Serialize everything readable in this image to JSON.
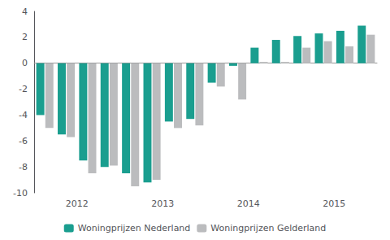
{
  "chart_data": {
    "type": "bar",
    "categories": [
      null,
      "2012",
      null,
      null,
      null,
      "2013",
      null,
      null,
      null,
      "2014",
      null,
      null,
      null,
      "2015",
      null,
      null
    ],
    "series": [
      {
        "name": "Woningprijzen Nederland",
        "color": "#1a9e8f",
        "values": [
          -4.0,
          -5.5,
          -7.5,
          -8.0,
          -8.5,
          -9.2,
          -4.5,
          -4.3,
          -1.5,
          -0.2,
          1.2,
          1.8,
          2.1,
          2.3,
          2.5,
          2.9
        ]
      },
      {
        "name": "Woningprijzen Gelderland",
        "color": "#bbbcbe",
        "values": [
          -5.0,
          -5.7,
          -8.5,
          -7.9,
          -9.5,
          -9.0,
          -5.0,
          -4.8,
          -1.8,
          -2.8,
          0.1,
          0.1,
          1.2,
          1.7,
          1.3,
          2.2
        ]
      }
    ],
    "ylim": [
      -10,
      4
    ],
    "yticks": [
      -10,
      -8,
      -6,
      -4,
      -2,
      0,
      2,
      4
    ],
    "grid": false,
    "legend": "bottom"
  }
}
